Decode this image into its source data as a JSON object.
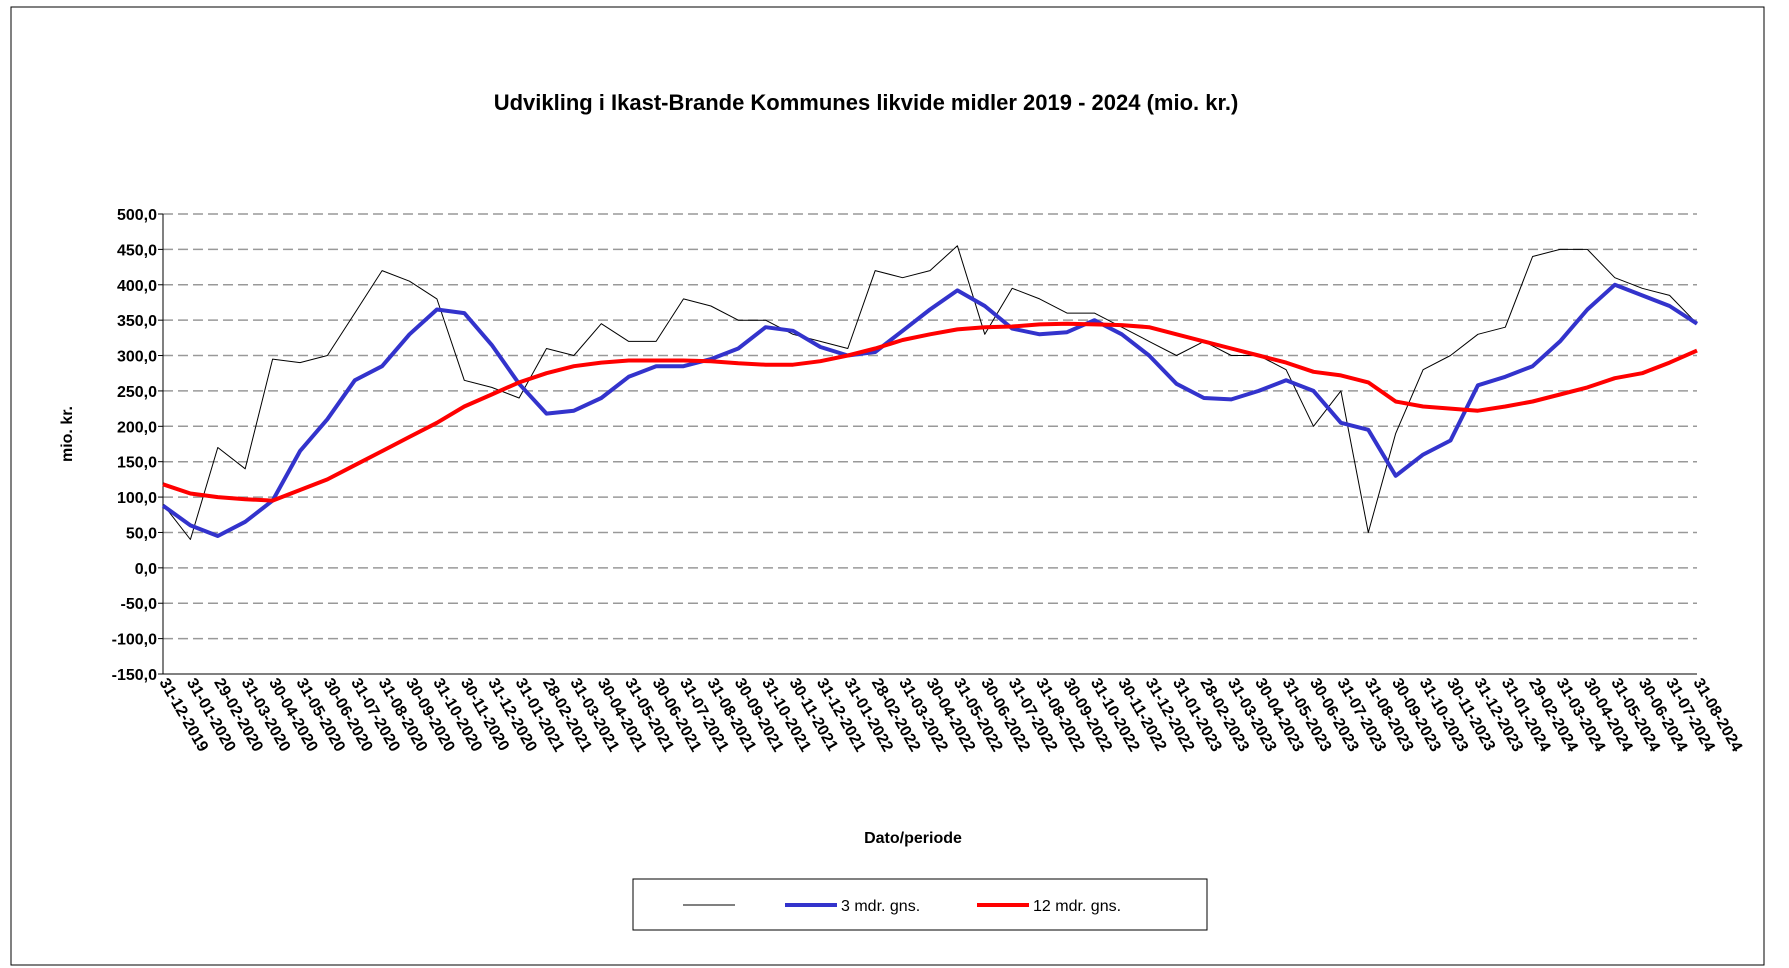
{
  "chart_data": {
    "type": "line",
    "title": "Udvikling i Ikast-Brande Kommunes likvide midler 2019 - 2024 (mio. kr.)",
    "y_label": "mio. kr.",
    "x_label": "Dato/periode",
    "categories": [
      "31-12-2019",
      "31-01-2020",
      "29-02-2020",
      "31-03-2020",
      "30-04-2020",
      "31-05-2020",
      "30-06-2020",
      "31-07-2020",
      "31-08-2020",
      "30-09-2020",
      "31-10-2020",
      "30-11-2020",
      "31-12-2020",
      "31-01-2021",
      "28-02-2021",
      "31-03-2021",
      "30-04-2021",
      "31-05-2021",
      "30-06-2021",
      "31-07-2021",
      "31-08-2021",
      "30-09-2021",
      "31-10-2021",
      "30-11-2021",
      "31-12-2021",
      "31-01-2022",
      "28-02-2022",
      "31-03-2022",
      "30-04-2022",
      "31-05-2022",
      "30-06-2022",
      "31-07-2022",
      "31-08-2022",
      "30-09-2022",
      "31-10-2022",
      "30-11-2022",
      "31-12-2022",
      "31-01-2023",
      "28-02-2023",
      "31-03-2023",
      "30-04-2023",
      "31-05-2023",
      "30-06-2023",
      "31-07-2023",
      "31-08-2023",
      "30-09-2023",
      "31-10-2023",
      "30-11-2023",
      "31-12-2023",
      "31-01-2024",
      "29-02-2024",
      "31-03-2024",
      "30-04-2024",
      "31-05-2024",
      "30-06-2024",
      "31-07-2024",
      "31-08-2024"
    ],
    "series": [
      {
        "color": "#000000",
        "width": 1,
        "values": [
          90,
          40,
          170,
          140,
          295,
          290,
          300,
          360,
          420,
          405,
          380,
          265,
          255,
          240,
          310,
          300,
          345,
          320,
          320,
          380,
          370,
          350,
          350,
          330,
          320,
          310,
          420,
          410,
          420,
          455,
          330,
          395,
          380,
          360,
          360,
          340,
          320,
          300,
          320,
          300,
          300,
          280,
          200,
          250,
          50,
          190,
          280,
          300,
          330,
          340,
          440,
          450,
          450,
          410,
          395,
          385,
          345
        ]
      },
      {
        "name": "3 mdr. gns.",
        "color": "#3333cc",
        "width": 4,
        "values": [
          88,
          60,
          45,
          65,
          95,
          165,
          210,
          265,
          285,
          330,
          365,
          360,
          315,
          260,
          218,
          222,
          240,
          270,
          285,
          285,
          295,
          310,
          340,
          335,
          312,
          300,
          305,
          335,
          365,
          392,
          370,
          338,
          330,
          333,
          350,
          330,
          300,
          260,
          240,
          238,
          250,
          265,
          250,
          205,
          195,
          130,
          160,
          180,
          258,
          270,
          285,
          320,
          365,
          400,
          385,
          370,
          345
        ]
      },
      {
        "name": "12 mdr. gns.",
        "color": "#ff0000",
        "width": 4,
        "values": [
          118,
          105,
          100,
          97,
          95,
          110,
          125,
          145,
          165,
          185,
          205,
          228,
          245,
          262,
          275,
          285,
          290,
          293,
          293,
          293,
          292,
          289,
          287,
          287,
          292,
          300,
          310,
          322,
          330,
          337,
          340,
          341,
          344,
          345,
          344,
          343,
          340,
          330,
          320,
          310,
          300,
          290,
          277,
          272,
          262,
          235,
          228,
          225,
          222,
          228,
          235,
          245,
          255,
          268,
          275,
          290,
          307
        ]
      }
    ],
    "ylim": [
      -150,
      500
    ],
    "yticks": [
      {
        "value": -150,
        "label": "-150,0"
      },
      {
        "value": -100,
        "label": "-100,0"
      },
      {
        "value": -50,
        "label": "-50,0"
      },
      {
        "value": 0,
        "label": "0,0"
      },
      {
        "value": 50,
        "label": "50,0"
      },
      {
        "value": 100,
        "label": "100,0"
      },
      {
        "value": 150,
        "label": "150,0"
      },
      {
        "value": 200,
        "label": "200,0"
      },
      {
        "value": 250,
        "label": "250,0"
      },
      {
        "value": 300,
        "label": "300,0"
      },
      {
        "value": 350,
        "label": "350,0"
      },
      {
        "value": 400,
        "label": "400,0"
      },
      {
        "value": 450,
        "label": "450,0"
      },
      {
        "value": 500,
        "label": "500,0"
      }
    ],
    "grid": true
  }
}
